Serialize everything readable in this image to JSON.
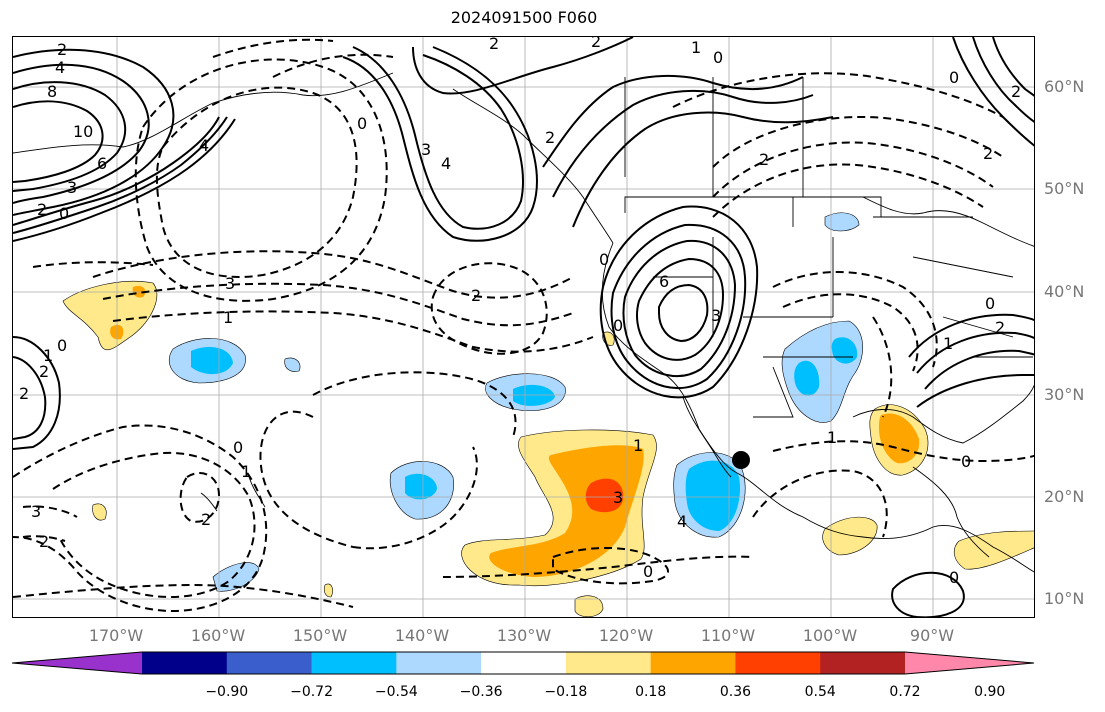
{
  "title": "2024091500 F060",
  "longitude_labels": [
    "170°W",
    "160°W",
    "150°W",
    "140°W",
    "130°W",
    "120°W",
    "110°W",
    "100°W",
    "90°W"
  ],
  "latitude_labels": [
    "60°N",
    "50°N",
    "40°N",
    "30°N",
    "20°N",
    "10°N"
  ],
  "colorbar": {
    "tick_labels": [
      "−0.90",
      "−0.72",
      "−0.54",
      "−0.36",
      "−0.18",
      "0.18",
      "0.36",
      "0.54",
      "0.72",
      "0.90"
    ],
    "colors": [
      "#9932cc",
      "#00008b",
      "#3a5fcd",
      "#00bfff",
      "#add8ff",
      "#ffffff",
      "#ffe98a",
      "#ffa500",
      "#ff4000",
      "#b22222",
      "#ff88aa"
    ]
  },
  "contour_labels": [
    "2",
    "2",
    "2",
    "1",
    "0",
    "4",
    "8",
    "10",
    "6",
    "3",
    "2",
    "0",
    "4",
    "3",
    "4",
    "2",
    "0",
    "0",
    "3",
    "2",
    "1",
    "6",
    "3",
    "2",
    "2",
    "0",
    "0",
    "1",
    "2",
    "2",
    "0",
    "1",
    "2",
    "2",
    "1",
    "0",
    "0",
    "3",
    "1",
    "0",
    "2",
    "4",
    "3",
    "1",
    "2",
    "0",
    "0"
  ],
  "marker": "station-dot"
}
